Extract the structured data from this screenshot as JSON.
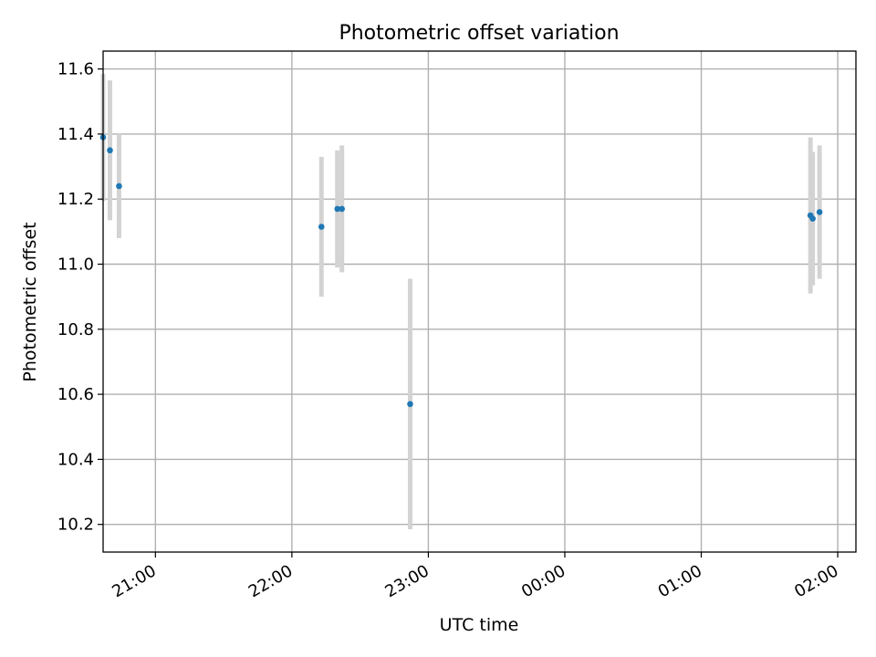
{
  "chart_data": {
    "type": "scatter",
    "title": "Photometric offset variation",
    "xlabel": "UTC time",
    "ylabel": "Photometric offset",
    "grid": true,
    "legend": "none",
    "xlim": [
      "20:37",
      "02:08"
    ],
    "ylim": [
      10.115,
      11.655
    ],
    "x_ticks": [
      {
        "time": "21:00",
        "label": "21:00"
      },
      {
        "time": "22:00",
        "label": "22:00"
      },
      {
        "time": "23:00",
        "label": "23:00"
      },
      {
        "time": "00:00",
        "label": "00:00"
      },
      {
        "time": "01:00",
        "label": "01:00"
      },
      {
        "time": "02:00",
        "label": "02:00"
      }
    ],
    "y_ticks": [
      10.2,
      10.4,
      10.6,
      10.8,
      11.0,
      11.2,
      11.4,
      11.6
    ],
    "colors": {
      "points": "#1f77b4",
      "errorbars": "#d3d3d3",
      "grid": "#b0b0b0"
    },
    "points": [
      {
        "time": "20:37",
        "y": 11.39,
        "err": 0.195
      },
      {
        "time": "20:40",
        "y": 11.35,
        "err": 0.215
      },
      {
        "time": "20:44",
        "y": 11.24,
        "err": 0.16
      },
      {
        "time": "22:13",
        "y": 11.115,
        "err": 0.215
      },
      {
        "time": "22:20",
        "y": 11.17,
        "err": 0.18
      },
      {
        "time": "22:22",
        "y": 11.17,
        "err": 0.195
      },
      {
        "time": "22:52",
        "y": 10.57,
        "err": 0.385
      },
      {
        "time": "01:48",
        "y": 11.15,
        "err": 0.24
      },
      {
        "time": "01:49",
        "y": 11.14,
        "err": 0.205
      },
      {
        "time": "01:52",
        "y": 11.16,
        "err": 0.205
      }
    ]
  }
}
